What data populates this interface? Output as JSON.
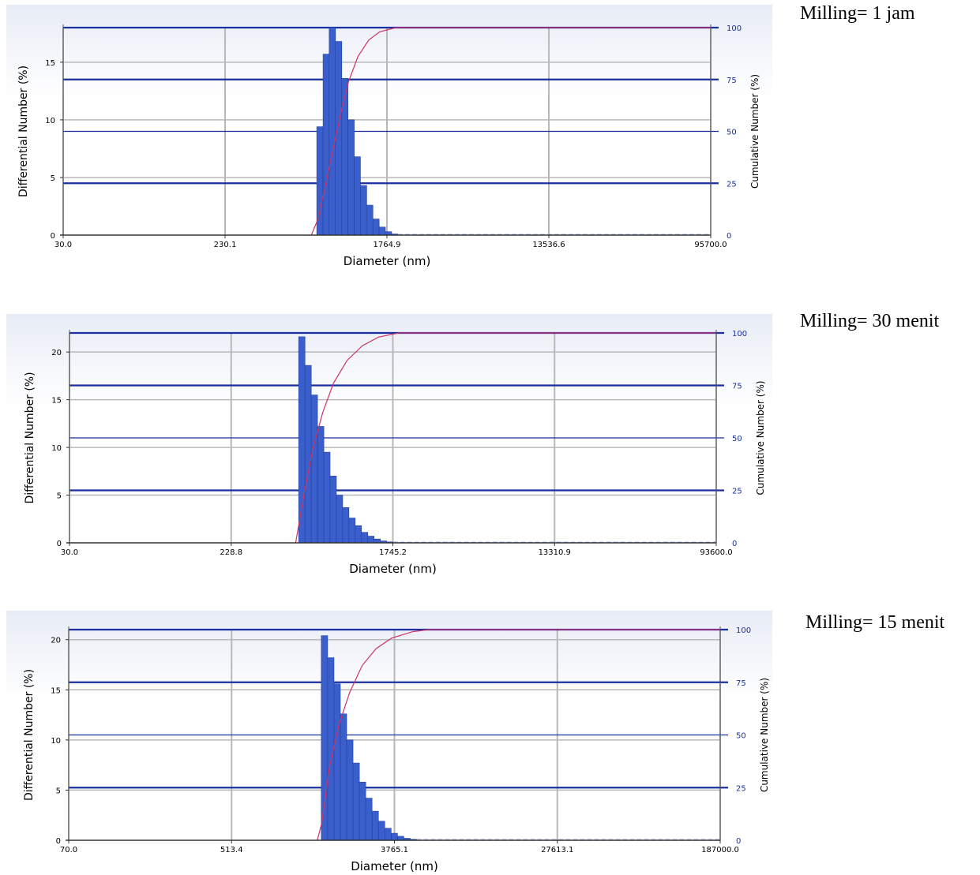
{
  "panels": [
    {
      "caption": "Milling= 1 jam",
      "chart_data": {
        "type": "bar",
        "xlabel": "Diameter (nm)",
        "ylabel": "Differential Number (%)",
        "y2label": "Cumulative Number (%)",
        "x_scale": "log",
        "x_ticks": [
          "30.0",
          "230.1",
          "1764.9",
          "13536.6",
          "95700.0"
        ],
        "xlim": [
          30.0,
          95700.0
        ],
        "ylim": [
          0,
          18
        ],
        "y_ticks": [
          "0",
          "5",
          "10",
          "15"
        ],
        "y2lim": [
          0,
          100
        ],
        "y2_ticks": [
          "0",
          "25",
          "50",
          "75",
          "100"
        ],
        "grid": true,
        "series": [
          {
            "kind": "bar",
            "bins": [
              {
                "x": 735,
                "value": 9.4
              },
              {
                "x": 795,
                "value": 15.7
              },
              {
                "x": 858,
                "value": 18.0
              },
              {
                "x": 928,
                "value": 16.8
              },
              {
                "x": 1003,
                "value": 13.6
              },
              {
                "x": 1084,
                "value": 10.0
              },
              {
                "x": 1171,
                "value": 6.8
              },
              {
                "x": 1266,
                "value": 4.3
              },
              {
                "x": 1368,
                "value": 2.6
              },
              {
                "x": 1479,
                "value": 1.4
              },
              {
                "x": 1598,
                "value": 0.7
              },
              {
                "x": 1727,
                "value": 0.3
              },
              {
                "x": 1867,
                "value": 0.1
              }
            ]
          },
          {
            "kind": "line",
            "axis": "y2",
            "color": "#cc3366",
            "points": [
              [
                660,
                0
              ],
              [
                720,
                8
              ],
              [
                780,
                22
              ],
              [
                860,
                40
              ],
              [
                950,
                58
              ],
              [
                1050,
                74
              ],
              [
                1180,
                86
              ],
              [
                1350,
                94
              ],
              [
                1550,
                98
              ],
              [
                1900,
                100
              ],
              [
                95700,
                100
              ]
            ]
          }
        ]
      }
    },
    {
      "caption": "Milling= 30 menit",
      "chart_data": {
        "type": "bar",
        "xlabel": "Diameter (nm)",
        "ylabel": "Differential Number (%)",
        "y2label": "Cumulative Number (%)",
        "x_scale": "log",
        "x_ticks": [
          "30.0",
          "228.8",
          "1745.2",
          "13310.9",
          "93600.0"
        ],
        "xlim": [
          30.0,
          93600.0
        ],
        "ylim": [
          0,
          22
        ],
        "y_ticks": [
          "0",
          "5",
          "10",
          "15",
          "20"
        ],
        "y2lim": [
          0,
          100
        ],
        "y2_ticks": [
          "0",
          "25",
          "50",
          "75",
          "100"
        ],
        "grid": true,
        "series": [
          {
            "kind": "bar",
            "bins": [
              {
                "x": 540,
                "value": 21.6
              },
              {
                "x": 584,
                "value": 18.6
              },
              {
                "x": 631,
                "value": 15.5
              },
              {
                "x": 683,
                "value": 12.2
              },
              {
                "x": 738,
                "value": 9.5
              },
              {
                "x": 798,
                "value": 7.0
              },
              {
                "x": 863,
                "value": 5.0
              },
              {
                "x": 933,
                "value": 3.7
              },
              {
                "x": 1009,
                "value": 2.6
              },
              {
                "x": 1091,
                "value": 1.8
              },
              {
                "x": 1180,
                "value": 1.1
              },
              {
                "x": 1276,
                "value": 0.7
              },
              {
                "x": 1380,
                "value": 0.4
              },
              {
                "x": 1492,
                "value": 0.2
              },
              {
                "x": 1613,
                "value": 0.1
              }
            ]
          },
          {
            "kind": "line",
            "axis": "y2",
            "color": "#cc3366",
            "points": [
              [
                500,
                0
              ],
              [
                560,
                25
              ],
              [
                620,
                45
              ],
              [
                700,
                62
              ],
              [
                800,
                76
              ],
              [
                950,
                87
              ],
              [
                1150,
                94
              ],
              [
                1400,
                98
              ],
              [
                1800,
                100
              ],
              [
                93600,
                100
              ]
            ]
          }
        ]
      }
    },
    {
      "caption": "Milling= 15 menit",
      "chart_data": {
        "type": "bar",
        "xlabel": "Diameter (nm)",
        "ylabel": "Differential Number (%)",
        "y2label": "Cumulative Number (%)",
        "x_scale": "log",
        "x_ticks": [
          "70.0",
          "513.4",
          "3765.1",
          "27613.1",
          "187000.0"
        ],
        "xlim": [
          70.0,
          187000.0
        ],
        "ylim": [
          0,
          21
        ],
        "y_ticks": [
          "0",
          "5",
          "10",
          "15",
          "20"
        ],
        "y2lim": [
          0,
          100
        ],
        "y2_ticks": [
          "0",
          "25",
          "50",
          "75",
          "100"
        ],
        "grid": true,
        "series": [
          {
            "kind": "bar",
            "bins": [
              {
                "x": 1550,
                "value": 20.4
              },
              {
                "x": 1674,
                "value": 18.2
              },
              {
                "x": 1808,
                "value": 15.6
              },
              {
                "x": 1952,
                "value": 12.6
              },
              {
                "x": 2108,
                "value": 10.0
              },
              {
                "x": 2277,
                "value": 7.7
              },
              {
                "x": 2459,
                "value": 5.8
              },
              {
                "x": 2655,
                "value": 4.2
              },
              {
                "x": 2868,
                "value": 2.9
              },
              {
                "x": 3097,
                "value": 1.9
              },
              {
                "x": 3344,
                "value": 1.2
              },
              {
                "x": 3612,
                "value": 0.7
              },
              {
                "x": 3900,
                "value": 0.4
              },
              {
                "x": 4212,
                "value": 0.2
              },
              {
                "x": 4549,
                "value": 0.1
              }
            ]
          },
          {
            "kind": "line",
            "axis": "y2",
            "color": "#cc3366",
            "points": [
              [
                1420,
                0
              ],
              [
                1500,
                8
              ],
              [
                1650,
                35
              ],
              [
                1850,
                55
              ],
              [
                2100,
                70
              ],
              [
                2450,
                83
              ],
              [
                2900,
                91
              ],
              [
                3500,
                96
              ],
              [
                4500,
                99
              ],
              [
                5500,
                100
              ],
              [
                187000,
                100
              ]
            ]
          }
        ]
      }
    }
  ],
  "colors": {
    "bar_fill": "#3a5fcd",
    "bar_stroke": "#1f3f9e",
    "cumulative_line": "#cc3366",
    "major_gridline": "#1a2fa0",
    "minor_gridline": "#b8b8b8",
    "tick_text": "#000000",
    "right_tick_text": "#1a2fa0",
    "plot_bg_top": "#e8ecf6"
  }
}
